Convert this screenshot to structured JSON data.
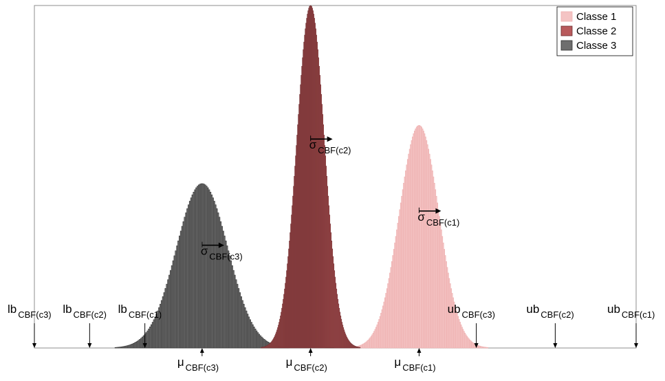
{
  "chart_data": {
    "type": "histogram",
    "grid": false,
    "legend_position": "top-right",
    "series": [
      {
        "name": "Classe 1",
        "color": "#f4c4c4",
        "edge_color": "#eeb0b0",
        "mean": 0.55,
        "sd": 0.1,
        "bin_width": 0.05,
        "peak_height": 0.65
      },
      {
        "name": "Classe 2",
        "color": "#b85a5c",
        "edge_color": "#6a2c2e",
        "mean": 0.0,
        "sd": 0.07,
        "bin_width": 0.05,
        "peak_height": 1.0
      },
      {
        "name": "Classe 3",
        "color": "#6e6e6e",
        "edge_color": "#303030",
        "mean": -0.55,
        "sd": 0.13,
        "bin_width": 0.05,
        "peak_height": 0.48
      }
    ],
    "xlim": [
      -1.4,
      1.65
    ],
    "ylim": [
      0,
      1.0
    ],
    "markers": {
      "lower": [
        {
          "main": "lb",
          "sub": "CBF(c3)",
          "x": -1.4
        },
        {
          "main": "lb",
          "sub": "CBF(c2)",
          "x": -1.12
        },
        {
          "main": "lb",
          "sub": "CBF(c1)",
          "x": -0.84
        }
      ],
      "upper": [
        {
          "main": "ub",
          "sub": "CBF(c3)",
          "x": 0.84
        },
        {
          "main": "ub",
          "sub": "CBF(c2)",
          "x": 1.24
        },
        {
          "main": "ub",
          "sub": "CBF(c1)",
          "x": 1.65
        }
      ],
      "mu": [
        {
          "main": "μ",
          "sub": "CBF(c3)",
          "x": -0.55
        },
        {
          "main": "μ",
          "sub": "CBF(c2)",
          "x": 0.0
        },
        {
          "main": "μ",
          "sub": "CBF(c1)",
          "x": 0.55
        }
      ],
      "sigma": [
        {
          "main": "σ",
          "sub": "CBF(c3)",
          "x": -0.55,
          "y": 0.3
        },
        {
          "main": "σ",
          "sub": "CBF(c2)",
          "x": 0.0,
          "y": 0.61
        },
        {
          "main": "σ",
          "sub": "CBF(c1)",
          "x": 0.55,
          "y": 0.4
        }
      ]
    }
  }
}
